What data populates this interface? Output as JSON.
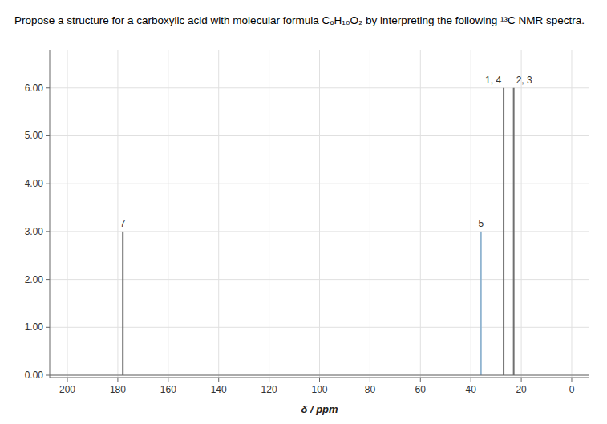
{
  "chart_data": {
    "type": "stem",
    "title": "Propose a structure for a carboxylic acid with molecular formula C₆H₁₀O₂ by interpreting the following ¹³C NMR spectra.",
    "xlabel": "δ / ppm",
    "x": [
      178.0,
      36.0,
      27.0,
      23.0
    ],
    "values": [
      3.0,
      3.0,
      6.0,
      6.0
    ],
    "labels": [
      "7",
      "5",
      "1, 4",
      "2, 3"
    ],
    "colors": [
      "#707070",
      "#90b4d0",
      "#707070",
      "#707070"
    ],
    "xlim": [
      207,
      -7
    ],
    "ylim": [
      -0.05,
      6.8
    ],
    "xticks": [
      200,
      180,
      160,
      140,
      120,
      100,
      80,
      60,
      40,
      20,
      0
    ],
    "yticks": [
      {
        "value": 0.0,
        "label": "0.00"
      },
      {
        "value": 1.0,
        "label": "1.00"
      },
      {
        "value": 2.0,
        "label": "2.00"
      },
      {
        "value": 3.0,
        "label": "3.00"
      },
      {
        "value": 4.0,
        "label": "4.00"
      },
      {
        "value": 5.0,
        "label": "5.00"
      },
      {
        "value": 6.0,
        "label": "6.00"
      }
    ],
    "grid": true
  }
}
